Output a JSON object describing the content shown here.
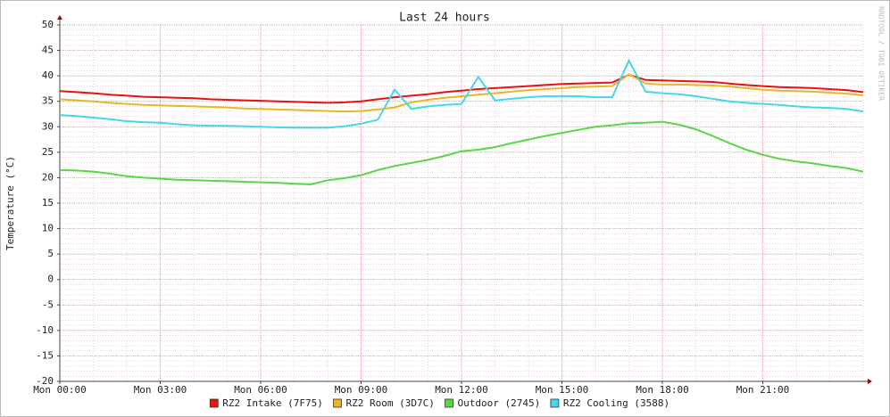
{
  "chart_data": {
    "type": "line",
    "title": "Last 24 hours",
    "y_label": "Temperature (°C)",
    "watermark": "RRDTOOL / TOBI OETIKER",
    "x": [
      0,
      0.5,
      1,
      1.5,
      2,
      2.5,
      3,
      3.5,
      4,
      4.5,
      5,
      5.5,
      6,
      6.5,
      7,
      7.5,
      8,
      8.5,
      9,
      9.5,
      10,
      10.5,
      11,
      11.5,
      12,
      12.5,
      13,
      13.5,
      14,
      14.5,
      15,
      15.5,
      16,
      16.5,
      17,
      17.5,
      18,
      18.5,
      19,
      19.5,
      20,
      20.5,
      21,
      21.5,
      22,
      22.5,
      23,
      23.5,
      24
    ],
    "xlim": [
      0,
      24
    ],
    "xticks": [
      {
        "value": 0,
        "label": "Mon 00:00"
      },
      {
        "value": 3,
        "label": "Mon 03:00"
      },
      {
        "value": 6,
        "label": "Mon 06:00"
      },
      {
        "value": 9,
        "label": "Mon 09:00"
      },
      {
        "value": 12,
        "label": "Mon 12:00"
      },
      {
        "value": 15,
        "label": "Mon 15:00"
      },
      {
        "value": 18,
        "label": "Mon 18:00"
      },
      {
        "value": 21,
        "label": "Mon 21:00"
      }
    ],
    "ylim": [
      -20,
      50
    ],
    "yticks": [
      -20,
      -15,
      -10,
      -5,
      0,
      5,
      10,
      15,
      20,
      25,
      30,
      35,
      40,
      45,
      50
    ],
    "grid": true,
    "series": [
      {
        "name": "RZ2 Intake (7F75)",
        "color": "#e8120f",
        "values": [
          37.0,
          36.8,
          36.6,
          36.3,
          36.1,
          35.9,
          35.8,
          35.7,
          35.6,
          35.4,
          35.3,
          35.2,
          35.1,
          35.0,
          34.9,
          34.8,
          34.7,
          34.8,
          35.0,
          35.4,
          35.8,
          36.1,
          36.4,
          36.8,
          37.1,
          37.4,
          37.6,
          37.8,
          38.0,
          38.2,
          38.4,
          38.5,
          38.6,
          38.7,
          40.2,
          39.2,
          39.1,
          39.0,
          38.9,
          38.8,
          38.5,
          38.2,
          38.0,
          37.8,
          37.7,
          37.6,
          37.4,
          37.2,
          36.8
        ]
      },
      {
        "name": "RZ2 Room (3D7C)",
        "color": "#e8b726",
        "values": [
          35.4,
          35.2,
          35.0,
          34.7,
          34.5,
          34.3,
          34.2,
          34.1,
          34.0,
          33.9,
          33.8,
          33.6,
          33.5,
          33.4,
          33.3,
          33.2,
          33.1,
          33.0,
          33.1,
          33.4,
          33.8,
          34.8,
          35.3,
          35.7,
          36.0,
          36.3,
          36.6,
          36.9,
          37.2,
          37.4,
          37.6,
          37.8,
          37.9,
          38.0,
          40.3,
          38.5,
          38.3,
          38.3,
          38.2,
          38.1,
          37.9,
          37.6,
          37.3,
          37.1,
          37.0,
          36.9,
          36.7,
          36.5,
          36.2
        ]
      },
      {
        "name": "Outdoor (2745)",
        "color": "#58d846",
        "values": [
          21.5,
          21.4,
          21.2,
          20.8,
          20.3,
          20.0,
          19.8,
          19.6,
          19.5,
          19.4,
          19.3,
          19.2,
          19.1,
          19.0,
          18.8,
          18.7,
          19.5,
          19.9,
          20.5,
          21.5,
          22.3,
          22.9,
          23.5,
          24.3,
          25.2,
          25.5,
          26.0,
          26.8,
          27.5,
          28.2,
          28.8,
          29.4,
          30.0,
          30.3,
          30.7,
          30.8,
          31.0,
          30.4,
          29.5,
          28.2,
          26.8,
          25.5,
          24.5,
          23.7,
          23.2,
          22.8,
          22.3,
          21.9,
          21.2
        ]
      },
      {
        "name": "RZ2 Cooling (3588)",
        "color": "#44d8e8",
        "values": [
          32.3,
          32.1,
          31.8,
          31.5,
          31.1,
          30.9,
          30.8,
          30.5,
          30.3,
          30.2,
          30.2,
          30.1,
          30.0,
          29.9,
          29.8,
          29.8,
          29.8,
          30.1,
          30.6,
          31.4,
          37.3,
          33.5,
          34.0,
          34.3,
          34.5,
          39.8,
          35.2,
          35.5,
          35.8,
          36.0,
          36.0,
          36.0,
          35.8,
          35.8,
          43.0,
          36.9,
          36.6,
          36.4,
          36.0,
          35.5,
          35.0,
          34.7,
          34.5,
          34.3,
          34.0,
          33.8,
          33.7,
          33.5,
          33.0
        ]
      }
    ]
  }
}
